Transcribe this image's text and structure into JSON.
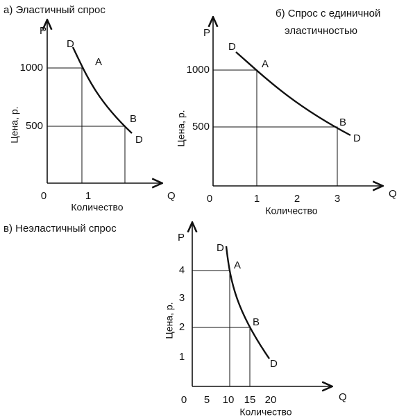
{
  "panels": [
    {
      "title": "а) Эластичный спрос",
      "y_axis_label": "P",
      "x_axis_label": "Q",
      "y_title": "Цена, р.",
      "x_title": "Количество",
      "y_ticks": [
        "1000",
        "500"
      ],
      "x_ticks": [
        "0",
        "1"
      ],
      "points": [
        "D",
        "A",
        "B",
        "D"
      ]
    },
    {
      "title": [
        "б) Спрос с единичной",
        "эластичностью"
      ],
      "y_axis_label": "P",
      "x_axis_label": "Q",
      "y_title": "Цена, р.",
      "x_title": "Количество",
      "y_ticks": [
        "1000",
        "500"
      ],
      "x_ticks": [
        "0",
        "1",
        "2",
        "3"
      ],
      "points": [
        "D",
        "A",
        "B",
        "D"
      ]
    },
    {
      "title": "в) Неэластичный спрос",
      "y_axis_label": "P",
      "x_axis_label": "Q",
      "y_title": "Цена, р.",
      "x_title": "Количество",
      "y_ticks": [
        "4",
        "3",
        "2",
        "1"
      ],
      "x_ticks": [
        "0",
        "5",
        "10",
        "15",
        "20"
      ],
      "points": [
        "D",
        "A",
        "B",
        "D"
      ]
    }
  ]
}
